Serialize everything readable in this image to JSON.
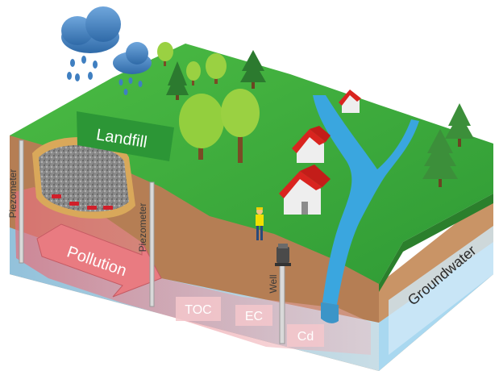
{
  "labels": {
    "landfill": "Landfill",
    "pollution": "Pollution",
    "piezometer_left": "Piezometer",
    "piezometer_right": "Piezometer",
    "well": "Well",
    "groundwater": "Groundwater",
    "toc": "TOC",
    "ec": "EC",
    "cd": "Cd"
  },
  "colors": {
    "grass": "#3fae3a",
    "grass_dark": "#2e8b2f",
    "soil": "#b27b53",
    "soil_side": "#c28a5c",
    "groundwater": "#9fd3ef",
    "river": "#3aa8e0",
    "pollution": "#e98a8f",
    "landfill_label_bg": "#2f9a3a",
    "roof": "#d9241f",
    "house": "#eeeeee",
    "cloud": "#4a86c5"
  },
  "icons": [
    "rain-cloud-icon",
    "tree-icon",
    "pine-tree-icon",
    "house-icon",
    "worker-icon",
    "well-pump-icon"
  ]
}
